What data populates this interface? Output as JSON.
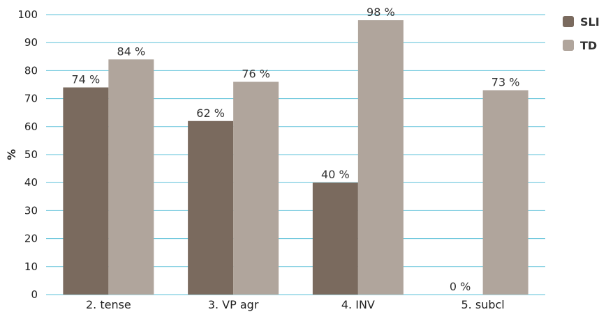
{
  "chart_data": {
    "type": "bar",
    "categories": [
      "2. tense",
      "3. VP agr",
      "4. INV",
      "5. subcl"
    ],
    "series": [
      {
        "name": "SLI",
        "values": [
          74,
          62,
          40,
          0
        ],
        "labels": [
          "74 %",
          "62 %",
          "40 %",
          "0 %"
        ],
        "color": "#7a6a5e"
      },
      {
        "name": "TD",
        "values": [
          84,
          76,
          98,
          73
        ],
        "labels": [
          "84 %",
          "76 %",
          "98 %",
          "73 %"
        ],
        "color": "#b0a59c"
      }
    ],
    "ylabel": "%",
    "xlabel": "",
    "ylim": [
      0,
      100
    ],
    "yticks": [
      0,
      10,
      20,
      30,
      40,
      50,
      60,
      70,
      80,
      90,
      100
    ],
    "grid": true,
    "grid_color": "#5bc0d8",
    "legend_position": "top-right"
  }
}
